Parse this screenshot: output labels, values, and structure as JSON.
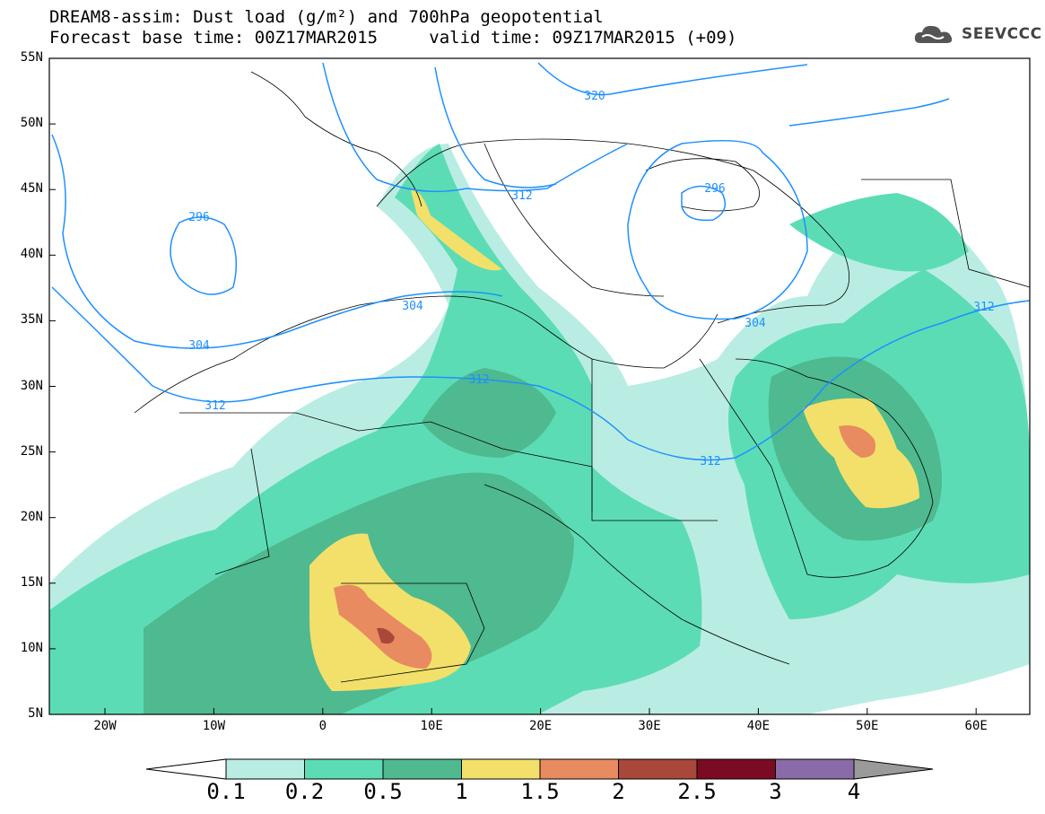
{
  "header": {
    "title": "DREAM8-assim: Dust load (g/m²) and 700hPa geopotential",
    "base_time": "Forecast base time: 00Z17MAR2015",
    "valid_time": "valid time: 09Z17MAR2015 (+09)"
  },
  "logo": {
    "text": "SEEVCCC",
    "icon": "cloud-logo-icon"
  },
  "axes": {
    "lat_labels": [
      "55N",
      "50N",
      "45N",
      "40N",
      "35N",
      "30N",
      "25N",
      "20N",
      "15N",
      "10N",
      "5N"
    ],
    "lon_labels": [
      "20W",
      "10W",
      "0",
      "10E",
      "20E",
      "30E",
      "40E",
      "50E",
      "60E"
    ]
  },
  "contours": [
    "296",
    "304",
    "304",
    "304",
    "312",
    "312",
    "312",
    "312",
    "312",
    "320",
    "296"
  ],
  "colorbar": {
    "labels": [
      "0.1",
      "0.2",
      "0.5",
      "1",
      "1.5",
      "2",
      "2.5",
      "3",
      "4"
    ],
    "colors": [
      "#ffffff",
      "#b9ede3",
      "#5cdcb5",
      "#4fb98f",
      "#f2e06b",
      "#e88b60",
      "#a8473a",
      "#7a0b22",
      "#8b6aa8",
      "#9a9a9a"
    ]
  },
  "colors": {
    "contour": "#1e90ff",
    "border": "#000000"
  }
}
